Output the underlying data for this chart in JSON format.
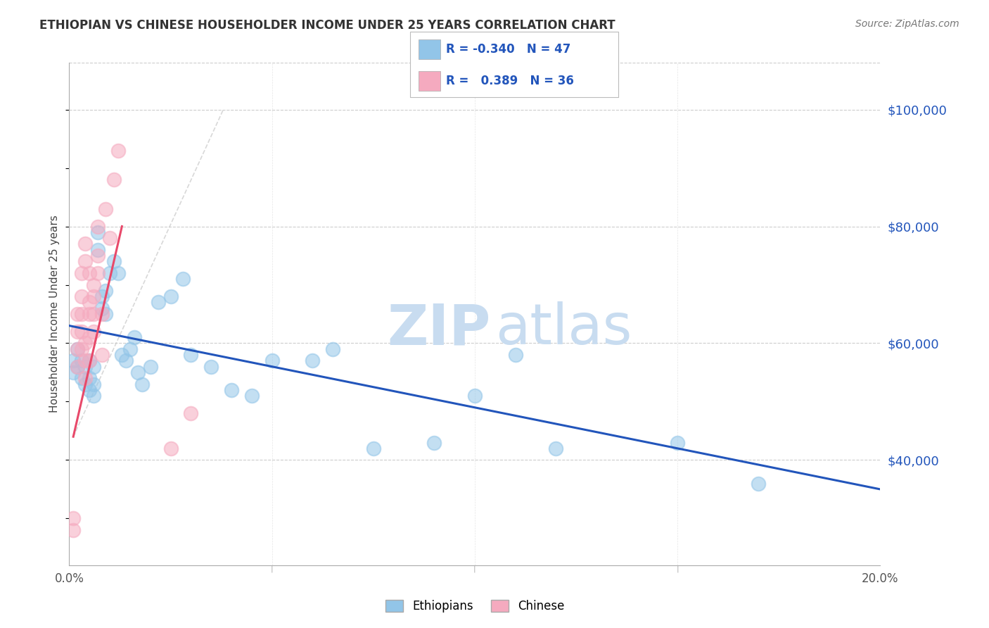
{
  "title": "ETHIOPIAN VS CHINESE HOUSEHOLDER INCOME UNDER 25 YEARS CORRELATION CHART",
  "source": "Source: ZipAtlas.com",
  "ylabel": "Householder Income Under 25 years",
  "xlim": [
    0.0,
    0.2
  ],
  "ylim": [
    22000,
    108000
  ],
  "ytick_labels": [
    "$40,000",
    "$60,000",
    "$80,000",
    "$100,000"
  ],
  "ytick_values": [
    40000,
    60000,
    80000,
    100000
  ],
  "blue_color": "#92C5E8",
  "pink_color": "#F5AABF",
  "blue_line_color": "#2255BB",
  "pink_line_color": "#E8496A",
  "diag_line_color": "#C8C8C8",
  "watermark_zip_color": "#C8DCF0",
  "watermark_atlas_color": "#C8DCF0",
  "blue_scatter_x": [
    0.001,
    0.001,
    0.002,
    0.002,
    0.003,
    0.003,
    0.004,
    0.004,
    0.005,
    0.005,
    0.005,
    0.006,
    0.006,
    0.006,
    0.007,
    0.007,
    0.008,
    0.008,
    0.009,
    0.009,
    0.01,
    0.011,
    0.012,
    0.013,
    0.014,
    0.015,
    0.016,
    0.017,
    0.018,
    0.02,
    0.022,
    0.025,
    0.028,
    0.03,
    0.035,
    0.04,
    0.045,
    0.05,
    0.06,
    0.065,
    0.075,
    0.09,
    0.1,
    0.11,
    0.12,
    0.15,
    0.17
  ],
  "blue_scatter_y": [
    55000,
    57000,
    56000,
    59000,
    54000,
    57000,
    53000,
    56000,
    52000,
    54000,
    57000,
    51000,
    53000,
    56000,
    76000,
    79000,
    68000,
    66000,
    65000,
    69000,
    72000,
    74000,
    72000,
    58000,
    57000,
    59000,
    61000,
    55000,
    53000,
    56000,
    67000,
    68000,
    71000,
    58000,
    56000,
    52000,
    51000,
    57000,
    57000,
    59000,
    42000,
    43000,
    51000,
    58000,
    42000,
    43000,
    36000
  ],
  "pink_scatter_x": [
    0.001,
    0.001,
    0.002,
    0.002,
    0.002,
    0.002,
    0.003,
    0.003,
    0.003,
    0.003,
    0.003,
    0.004,
    0.004,
    0.004,
    0.004,
    0.004,
    0.005,
    0.005,
    0.005,
    0.005,
    0.005,
    0.006,
    0.006,
    0.006,
    0.006,
    0.007,
    0.007,
    0.007,
    0.008,
    0.008,
    0.009,
    0.01,
    0.011,
    0.012,
    0.025,
    0.03
  ],
  "pink_scatter_y": [
    28000,
    30000,
    56000,
    59000,
    62000,
    65000,
    59000,
    62000,
    65000,
    68000,
    72000,
    54000,
    57000,
    60000,
    74000,
    77000,
    57000,
    61000,
    65000,
    67000,
    72000,
    62000,
    65000,
    70000,
    68000,
    72000,
    75000,
    80000,
    58000,
    65000,
    83000,
    78000,
    88000,
    93000,
    42000,
    48000
  ],
  "blue_line_x": [
    0.0,
    0.2
  ],
  "blue_line_y": [
    63000,
    35000
  ],
  "pink_line_x": [
    0.001,
    0.013
  ],
  "pink_line_y": [
    44000,
    80000
  ],
  "diag_line_x": [
    0.001,
    0.038
  ],
  "diag_line_y": [
    44000,
    100000
  ]
}
